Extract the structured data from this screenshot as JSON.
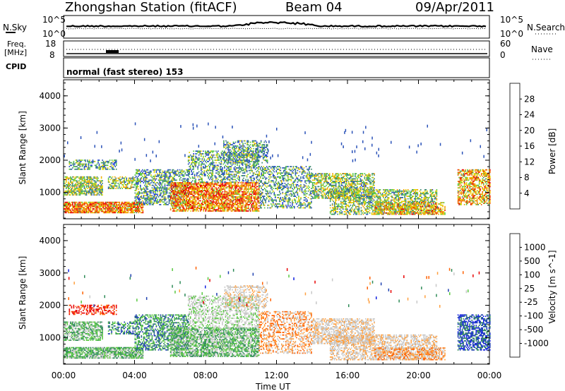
{
  "header": {
    "station": "Zhongshan Station (fitACF)",
    "beam": "Beam 04",
    "date": "09/Apr/2011"
  },
  "noise_panel": {
    "left_label": "N.Sky",
    "right_label": "N.Search",
    "left_ticks": [
      "10^5",
      "10^0"
    ],
    "right_ticks": [
      "10^5",
      "10^0"
    ]
  },
  "freq_panel": {
    "left_label_line1": "Freq.",
    "left_label_line2": "[MHz]",
    "left_ticks": [
      "18",
      "8"
    ],
    "right_label": "Nave",
    "right_ticks": [
      "60",
      "0"
    ]
  },
  "cpid_panel": {
    "label": "CPID",
    "text": "normal (fast stereo) 153"
  },
  "colors": {
    "power": [
      "#1030e0",
      "#2a52b8",
      "#3f8a70",
      "#58c840",
      "#e8d000",
      "#f0a000",
      "#f06000",
      "#e80000"
    ],
    "velocity": [
      "#e80000",
      "#ff6000",
      "#ffa040",
      "#c8c8c8",
      "#c8c8c8",
      "#58c840",
      "#2e8b57",
      "#1e40b0",
      "#1020e0"
    ],
    "background": "#ffffff"
  },
  "chart_data": [
    {
      "type": "heatmap",
      "variable": "power",
      "title": "",
      "xlabel": "",
      "ylabel": "Slant Range [km]",
      "xlim": [
        "00:00",
        "24:00"
      ],
      "ylim": [
        180,
        4500
      ],
      "x_ticks": [
        "00:00",
        "04:00",
        "08:00",
        "12:00",
        "16:00",
        "20:00",
        "00:00"
      ],
      "y_ticks": [
        "1000",
        "2000",
        "3000",
        "4000"
      ],
      "colorbar": {
        "label": "Power [dB]",
        "ticks": [
          "4",
          "8",
          "12",
          "16",
          "20",
          "24",
          "28"
        ],
        "range": [
          0,
          32
        ]
      },
      "grid": false
    },
    {
      "type": "heatmap",
      "variable": "velocity",
      "title": "",
      "xlabel": "Time UT",
      "ylabel": "Slant Range [km]",
      "xlim": [
        "00:00",
        "24:00"
      ],
      "ylim": [
        180,
        4500
      ],
      "x_ticks": [
        "00:00",
        "04:00",
        "08:00",
        "12:00",
        "16:00",
        "20:00",
        "00:00"
      ],
      "y_ticks": [
        "1000",
        "2000",
        "3000",
        "4000"
      ],
      "colorbar": {
        "label": "Velocity [m s^-1]",
        "ticks": [
          "1000",
          "500",
          "100",
          "25",
          "-25",
          "-100",
          "-500",
          "-1000"
        ]
      },
      "grid": false
    }
  ]
}
